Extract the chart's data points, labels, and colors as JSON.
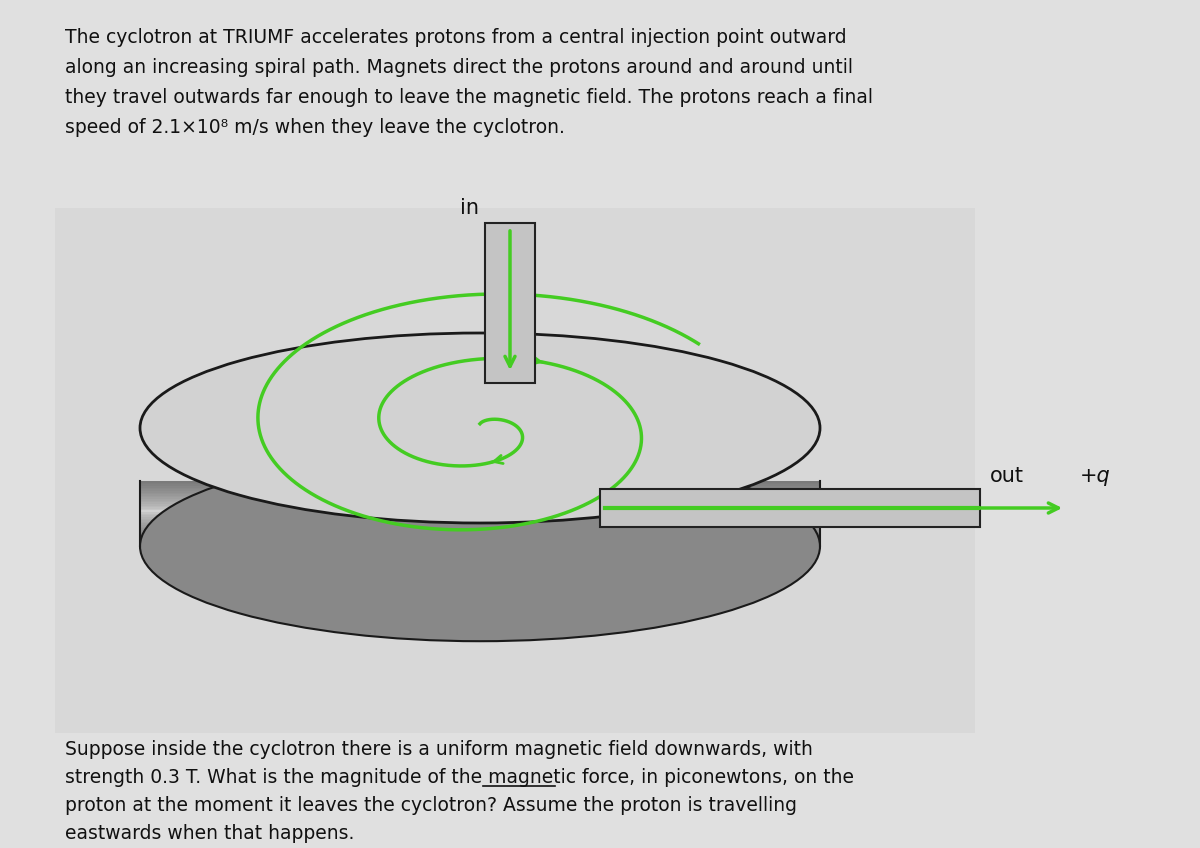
{
  "bg_color": "#e0e0e0",
  "image_bg": "#d8d8d8",
  "top_lines": [
    "The cyclotron at TRIUMF accelerates protons from a central injection point outward",
    "along an increasing spiral path. Magnets direct the protons around and around until",
    "they travel outwards far enough to leave the magnetic field. The protons reach a final",
    "speed of 2.1×10¸ m/s when they leave the cyclotron."
  ],
  "bottom_line1": "Suppose inside the cyclotron there is a uniform magnetic field downwards, with",
  "bottom_line2_pre": "strength 0.3 T. What is the magnitude of the magnetic force, in ",
  "bottom_line2_ul": "piconewtons",
  "bottom_line2_post": ", on the",
  "bottom_line3": "proton at the moment it leaves the cyclotron? Assume the proton is travelling",
  "bottom_line4": "eastwards when that happens.",
  "disk_top_color": "#d2d2d2",
  "disk_side_colors": [
    "#aaaaaa",
    "#c0c0c0",
    "#b0b0b0",
    "#909090",
    "#787878"
  ],
  "disk_edge_color": "#1a1a1a",
  "spiral_color": "#44cc22",
  "spiral_lw": 2.5,
  "green": "#44cc22",
  "tube_fill": "#c8c8c8",
  "tube_edge": "#222222",
  "beam_fill": "#c8c8c8",
  "beam_edge": "#222222",
  "label_in": "in",
  "label_out": "out",
  "label_charge": "+q",
  "text_fontsize": 13.5,
  "label_fontsize": 15,
  "text_color": "#111111"
}
